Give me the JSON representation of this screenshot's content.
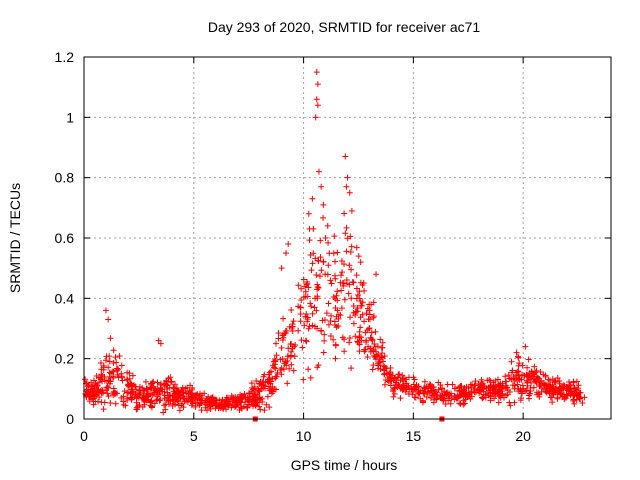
{
  "chart_data": {
    "type": "scatter",
    "title": "Day 293 of 2020, SRMTID for receiver ac71",
    "xlabel": "GPS time / hours",
    "ylabel": "SRMTID / TECUs",
    "xlim": [
      0,
      24
    ],
    "ylim": [
      0,
      1.2
    ],
    "xticks": [
      0,
      5,
      10,
      15,
      20
    ],
    "xtick_labels": [
      "0",
      "5",
      "10",
      "15",
      "20"
    ],
    "yticks": [
      0,
      0.2,
      0.4,
      0.6,
      0.8,
      1.0,
      1.2
    ],
    "ytick_labels": [
      "0",
      "0.2",
      "0.4",
      "0.6",
      "0.8",
      "1",
      "1.2"
    ],
    "grid": true,
    "marker": "+",
    "color": "#ff0000",
    "x_range_observed": [
      0,
      22.8
    ],
    "envelope": [
      {
        "x": 0.0,
        "base": 0.1,
        "spread": 0.06
      },
      {
        "x": 0.5,
        "base": 0.09,
        "spread": 0.05
      },
      {
        "x": 1.0,
        "base": 0.14,
        "spread": 0.16
      },
      {
        "x": 1.5,
        "base": 0.14,
        "spread": 0.14
      },
      {
        "x": 2.0,
        "base": 0.1,
        "spread": 0.12
      },
      {
        "x": 2.5,
        "base": 0.08,
        "spread": 0.08
      },
      {
        "x": 3.0,
        "base": 0.08,
        "spread": 0.06
      },
      {
        "x": 3.5,
        "base": 0.09,
        "spread": 0.09
      },
      {
        "x": 4.0,
        "base": 0.08,
        "spread": 0.07
      },
      {
        "x": 5.0,
        "base": 0.07,
        "spread": 0.05
      },
      {
        "x": 6.0,
        "base": 0.05,
        "spread": 0.03
      },
      {
        "x": 7.0,
        "base": 0.06,
        "spread": 0.04
      },
      {
        "x": 8.0,
        "base": 0.08,
        "spread": 0.07
      },
      {
        "x": 8.5,
        "base": 0.12,
        "spread": 0.1
      },
      {
        "x": 9.0,
        "base": 0.22,
        "spread": 0.18
      },
      {
        "x": 9.5,
        "base": 0.25,
        "spread": 0.2
      },
      {
        "x": 10.0,
        "base": 0.35,
        "spread": 0.3
      },
      {
        "x": 10.5,
        "base": 0.45,
        "spread": 0.4
      },
      {
        "x": 11.0,
        "base": 0.38,
        "spread": 0.32
      },
      {
        "x": 11.5,
        "base": 0.4,
        "spread": 0.3
      },
      {
        "x": 12.0,
        "base": 0.45,
        "spread": 0.35
      },
      {
        "x": 12.5,
        "base": 0.35,
        "spread": 0.25
      },
      {
        "x": 13.0,
        "base": 0.3,
        "spread": 0.18
      },
      {
        "x": 13.5,
        "base": 0.2,
        "spread": 0.15
      },
      {
        "x": 14.0,
        "base": 0.12,
        "spread": 0.07
      },
      {
        "x": 15.0,
        "base": 0.1,
        "spread": 0.05
      },
      {
        "x": 16.0,
        "base": 0.09,
        "spread": 0.05
      },
      {
        "x": 17.0,
        "base": 0.08,
        "spread": 0.05
      },
      {
        "x": 18.0,
        "base": 0.1,
        "spread": 0.05
      },
      {
        "x": 19.0,
        "base": 0.1,
        "spread": 0.06
      },
      {
        "x": 19.5,
        "base": 0.13,
        "spread": 0.1
      },
      {
        "x": 20.0,
        "base": 0.14,
        "spread": 0.1
      },
      {
        "x": 21.0,
        "base": 0.1,
        "spread": 0.06
      },
      {
        "x": 22.0,
        "base": 0.09,
        "spread": 0.05
      },
      {
        "x": 22.8,
        "base": 0.08,
        "spread": 0.05
      }
    ],
    "outliers": [
      {
        "x": 10.6,
        "y": 1.15
      },
      {
        "x": 10.65,
        "y": 1.11
      },
      {
        "x": 10.6,
        "y": 1.06
      },
      {
        "x": 10.65,
        "y": 1.04
      },
      {
        "x": 10.55,
        "y": 1.0
      },
      {
        "x": 10.7,
        "y": 0.82
      },
      {
        "x": 10.8,
        "y": 0.77
      },
      {
        "x": 10.9,
        "y": 0.71
      },
      {
        "x": 10.4,
        "y": 0.73
      },
      {
        "x": 11.9,
        "y": 0.87
      },
      {
        "x": 12.0,
        "y": 0.8
      },
      {
        "x": 11.95,
        "y": 0.77
      },
      {
        "x": 12.1,
        "y": 0.75
      },
      {
        "x": 12.2,
        "y": 0.69
      },
      {
        "x": 9.3,
        "y": 0.58
      },
      {
        "x": 9.2,
        "y": 0.55
      },
      {
        "x": 9.0,
        "y": 0.5
      },
      {
        "x": 11.1,
        "y": 0.64
      },
      {
        "x": 11.0,
        "y": 0.6
      },
      {
        "x": 12.6,
        "y": 0.52
      },
      {
        "x": 13.3,
        "y": 0.48
      },
      {
        "x": 1.0,
        "y": 0.36
      },
      {
        "x": 1.1,
        "y": 0.33
      },
      {
        "x": 3.4,
        "y": 0.26
      },
      {
        "x": 3.5,
        "y": 0.25
      },
      {
        "x": 19.7,
        "y": 0.22
      },
      {
        "x": 20.1,
        "y": 0.24
      }
    ],
    "baseline_markers": [
      {
        "x": 7.8,
        "y": 0.0
      },
      {
        "x": 16.3,
        "y": 0.0
      }
    ]
  }
}
